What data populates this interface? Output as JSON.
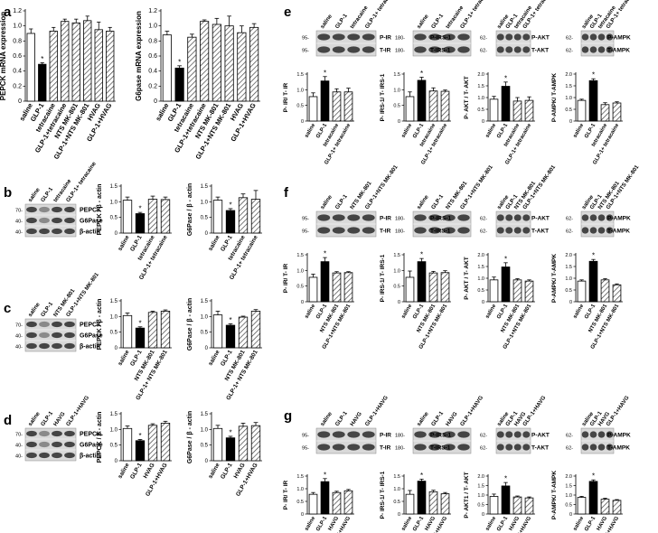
{
  "figure": {
    "panel_letters": {
      "a": "a",
      "b": "b",
      "c": "c",
      "d": "d",
      "e": "e",
      "f": "f",
      "g": "g"
    }
  },
  "colors": {
    "saline": "#ffffff",
    "glp1": "#000000",
    "hatch": "#555555",
    "blot_bg": "#d9d9d9",
    "band": "#2a2a2a"
  },
  "chart_data": [
    {
      "id": "a1",
      "type": "bar",
      "ylabel": "PEPCK mRNA expression",
      "ylim": [
        0,
        1.2
      ],
      "yticks": [
        0,
        0.2,
        0.4,
        0.6,
        0.8,
        1.0,
        1.2
      ],
      "categories": [
        "saline",
        "GLP-1",
        "tetracaine",
        "GLP-1+tetracaine",
        "NTS MK-801",
        "GLP-1+NTS MK-801",
        "HVAG",
        "GLP-1+HVAG"
      ],
      "values": [
        0.9,
        0.49,
        0.93,
        1.06,
        1.04,
        1.07,
        0.95,
        0.93
      ],
      "errors": [
        0.06,
        0.02,
        0.05,
        0.03,
        0.05,
        0.06,
        0.1,
        0.05
      ],
      "significant": [
        1
      ]
    },
    {
      "id": "a2",
      "type": "bar",
      "ylabel": "G6pase mRNA expression",
      "ylim": [
        0,
        1.2
      ],
      "yticks": [
        0,
        0.2,
        0.4,
        0.6,
        0.8,
        1.0,
        1.2
      ],
      "categories": [
        "saline",
        "GLP-1",
        "tetracaine",
        "GLP-1+tetracaine",
        "NTS MK-801",
        "GLP-1+NTS MK-801",
        "HVAG",
        "GLP-1+HVAG"
      ],
      "values": [
        0.88,
        0.44,
        0.85,
        1.06,
        1.02,
        1.0,
        0.91,
        0.98
      ],
      "errors": [
        0.05,
        0.03,
        0.04,
        0.02,
        0.08,
        0.13,
        0.09,
        0.05
      ],
      "significant": [
        1
      ]
    },
    {
      "id": "b1",
      "type": "bar",
      "ylabel": "PEPCK / β - actin",
      "ylim": [
        0,
        1.5
      ],
      "yticks": [
        0,
        0.5,
        1.0,
        1.5
      ],
      "categories": [
        "saline",
        "GLP-1",
        "tetracaine",
        "GLP-1+ tetracaine"
      ],
      "values": [
        1.05,
        0.62,
        1.08,
        1.07
      ],
      "errors": [
        0.1,
        0.04,
        0.1,
        0.08
      ],
      "significant": [
        1
      ]
    },
    {
      "id": "b2",
      "type": "bar",
      "ylabel": "G6Pase / β - actin",
      "ylim": [
        0,
        1.5
      ],
      "yticks": [
        0,
        0.5,
        1.0,
        1.5
      ],
      "categories": [
        "saline",
        "GLP-1",
        "tetracaine",
        "GLP-1+ tetracaine"
      ],
      "values": [
        1.05,
        0.72,
        1.13,
        1.08
      ],
      "errors": [
        0.1,
        0.06,
        0.12,
        0.28
      ],
      "significant": [
        1
      ]
    },
    {
      "id": "c1",
      "type": "bar",
      "ylabel": "PEPCK / β - actin",
      "ylim": [
        0,
        1.5
      ],
      "yticks": [
        0,
        0.5,
        1.0,
        1.5
      ],
      "categories": [
        "saline",
        "GLP-1",
        "NTS MK-801",
        "GLP-1+ NTS MK-801"
      ],
      "values": [
        1.03,
        0.63,
        1.13,
        1.17
      ],
      "errors": [
        0.08,
        0.04,
        0.04,
        0.04
      ],
      "significant": [
        1
      ]
    },
    {
      "id": "c2",
      "type": "bar",
      "ylabel": "G6Pase / β - actin",
      "ylim": [
        0,
        1.5
      ],
      "yticks": [
        0,
        0.5,
        1.0,
        1.5
      ],
      "categories": [
        "saline",
        "GLP-1",
        "NTS MK-801",
        "GLP-1+ NTS MK-801"
      ],
      "values": [
        1.05,
        0.72,
        0.98,
        1.17
      ],
      "errors": [
        0.12,
        0.05,
        0.03,
        0.05
      ],
      "significant": [
        1
      ]
    },
    {
      "id": "d1",
      "type": "bar",
      "ylabel": "PEPCK / β - actin",
      "ylim": [
        0,
        1.5
      ],
      "yticks": [
        0,
        0.5,
        1.0,
        1.5
      ],
      "categories": [
        "saline",
        "GLP-1",
        "HVAG",
        "GLP-1+HVAG"
      ],
      "values": [
        1.03,
        0.64,
        1.13,
        1.2
      ],
      "errors": [
        0.08,
        0.04,
        0.05,
        0.06
      ],
      "significant": [
        1
      ]
    },
    {
      "id": "d2",
      "type": "bar",
      "ylabel": "G6Pase / β - actin",
      "ylim": [
        0,
        1.5
      ],
      "yticks": [
        0,
        0.5,
        1.0,
        1.5
      ],
      "categories": [
        "saline",
        "GLP-1",
        "HVAG",
        "GLP-1+HVAG"
      ],
      "values": [
        1.03,
        0.73,
        1.1,
        1.12
      ],
      "errors": [
        0.1,
        0.05,
        0.1,
        0.1
      ],
      "significant": [
        1
      ]
    },
    {
      "id": "e1",
      "type": "bar",
      "ylabel": "P- IR/ T- IR",
      "ylim": [
        0,
        1.5
      ],
      "yticks": [
        0,
        0.5,
        1.0,
        1.5
      ],
      "categories": [
        "saline",
        "GLP-1",
        "tetracaine",
        "GLP-1+ tetracaine"
      ],
      "values": [
        0.78,
        1.28,
        0.93,
        0.93
      ],
      "errors": [
        0.12,
        0.14,
        0.1,
        0.12
      ],
      "significant": [
        1
      ]
    },
    {
      "id": "e2",
      "type": "bar",
      "ylabel": "P- IRS-1/ T- IRS-1",
      "ylim": [
        0,
        1.5
      ],
      "yticks": [
        0,
        0.5,
        1.0,
        1.5
      ],
      "categories": [
        "saline",
        "GLP-1",
        "tetracaine",
        "GLP-1+ tetracaine"
      ],
      "values": [
        0.78,
        1.3,
        0.96,
        0.95
      ],
      "errors": [
        0.15,
        0.1,
        0.1,
        0.04
      ],
      "significant": [
        1
      ]
    },
    {
      "id": "e3",
      "type": "bar",
      "ylabel": "P- AKT / T- AKT",
      "ylim": [
        0,
        2.0
      ],
      "yticks": [
        0,
        0.5,
        1.0,
        1.5,
        2.0
      ],
      "categories": [
        "saline",
        "GLP-1",
        "tetracaine",
        "GLP-1+ tetracaine"
      ],
      "values": [
        0.93,
        1.48,
        0.85,
        0.88
      ],
      "errors": [
        0.12,
        0.18,
        0.15,
        0.15
      ],
      "significant": [
        1
      ]
    },
    {
      "id": "e4",
      "type": "bar",
      "ylabel": "P-AMPK/ T-AMPK",
      "ylim": [
        0,
        2.0
      ],
      "yticks": [
        0,
        0.5,
        1.0,
        1.5,
        2.0
      ],
      "categories": [
        "saline",
        "GLP-1",
        "tetracaine",
        "GLP-1+ tetracaine"
      ],
      "values": [
        0.88,
        1.72,
        0.7,
        0.77
      ],
      "errors": [
        0.05,
        0.08,
        0.08,
        0.05
      ],
      "significant": [
        1
      ]
    },
    {
      "id": "f1",
      "type": "bar",
      "ylabel": "P- IR/ T- IR",
      "ylim": [
        0,
        1.5
      ],
      "yticks": [
        0,
        0.5,
        1.0,
        1.5
      ],
      "categories": [
        "saline",
        "GLP-1",
        "NTS MK-801",
        "GLP-1+NTS MK-801"
      ],
      "values": [
        0.78,
        1.28,
        0.92,
        0.93
      ],
      "errors": [
        0.1,
        0.13,
        0.04,
        0.03
      ],
      "significant": [
        1
      ]
    },
    {
      "id": "f2",
      "type": "bar",
      "ylabel": "P- IRS-1/ T- IRS-1",
      "ylim": [
        0,
        1.5
      ],
      "yticks": [
        0,
        0.5,
        1.0,
        1.5
      ],
      "categories": [
        "saline",
        "GLP-1",
        "NTS MK-801",
        "GLP-1+NTS MK-801"
      ],
      "values": [
        0.78,
        1.28,
        0.92,
        0.93
      ],
      "errors": [
        0.2,
        0.1,
        0.05,
        0.06
      ],
      "significant": [
        1
      ]
    },
    {
      "id": "f3",
      "type": "bar",
      "ylabel": "P- AKT / T- AKT",
      "ylim": [
        0,
        2.0
      ],
      "yticks": [
        0,
        0.5,
        1.0,
        1.5,
        2.0
      ],
      "categories": [
        "saline",
        "GLP-1",
        "NTS MK-801",
        "GLP-1+NTS MK-801"
      ],
      "values": [
        0.93,
        1.48,
        0.93,
        0.88
      ],
      "errors": [
        0.12,
        0.18,
        0.05,
        0.05
      ],
      "significant": [
        1
      ]
    },
    {
      "id": "f4",
      "type": "bar",
      "ylabel": "P-AMPK/ T-AMPK",
      "ylim": [
        0,
        2.0
      ],
      "yticks": [
        0,
        0.5,
        1.0,
        1.5,
        2.0
      ],
      "categories": [
        "saline",
        "GLP-1",
        "NTS MK-801",
        "GLP-1+NTS MK-801"
      ],
      "values": [
        0.88,
        1.72,
        0.93,
        0.72
      ],
      "errors": [
        0.05,
        0.08,
        0.05,
        0.04
      ],
      "significant": [
        1
      ]
    },
    {
      "id": "g1",
      "type": "bar",
      "ylabel": "P- IR/ T- IR",
      "ylim": [
        0,
        1.5
      ],
      "yticks": [
        0,
        0.5,
        1.0,
        1.5
      ],
      "categories": [
        "saline",
        "GLP-1",
        "HAVG",
        "GLP-1+HAVG"
      ],
      "values": [
        0.78,
        1.28,
        0.85,
        0.92
      ],
      "errors": [
        0.07,
        0.12,
        0.05,
        0.05
      ],
      "significant": [
        1
      ]
    },
    {
      "id": "g2",
      "type": "bar",
      "ylabel": "P- IRS-1/ T- IRS-1",
      "ylim": [
        0,
        1.5
      ],
      "yticks": [
        0,
        0.5,
        1.0,
        1.5
      ],
      "categories": [
        "saline",
        "GLP-1",
        "HAVG",
        "GLP-1+HAVG"
      ],
      "values": [
        0.78,
        1.3,
        0.88,
        0.8
      ],
      "errors": [
        0.15,
        0.08,
        0.06,
        0.05
      ],
      "significant": [
        1
      ]
    },
    {
      "id": "g3",
      "type": "bar",
      "ylabel": "P- AKT1 / T- AKT",
      "ylim": [
        0,
        2.0
      ],
      "yticks": [
        0,
        0.5,
        1.0,
        1.5,
        2.0
      ],
      "categories": [
        "saline",
        "GLP-1",
        "HAVG",
        "GLP-1+HAVG"
      ],
      "values": [
        0.93,
        1.48,
        0.9,
        0.85
      ],
      "errors": [
        0.12,
        0.18,
        0.05,
        0.05
      ],
      "significant": [
        1
      ]
    },
    {
      "id": "g4",
      "type": "bar",
      "ylabel": "P-AMPK/ T-AMPK",
      "ylim": [
        0,
        2.0
      ],
      "yticks": [
        0,
        0.5,
        1.0,
        1.5,
        2.0
      ],
      "categories": [
        "saline",
        "GLP-1",
        "HAVG",
        "GLP-1+HAVG"
      ],
      "values": [
        0.88,
        1.72,
        0.78,
        0.72
      ],
      "errors": [
        0.05,
        0.08,
        0.05,
        0.04
      ],
      "significant": [
        1
      ]
    }
  ],
  "blots": [
    {
      "id": "bb",
      "panel": "b",
      "lanes": [
        "saline",
        "GLP-1",
        "tetracaine",
        "GLP-1+ tetracaine"
      ],
      "rows": [
        {
          "label": "PEPCK",
          "mw": "70-",
          "weak": [
            1
          ]
        },
        {
          "label": "G6Pase",
          "mw": "40-",
          "weak": [
            1
          ]
        },
        {
          "label": "β-actin",
          "mw": "40-",
          "weak": []
        }
      ]
    },
    {
      "id": "bc",
      "panel": "c",
      "lanes": [
        "saline",
        "GLP-1",
        "NTS MK-801",
        "GLP-1+NTS MK-801"
      ],
      "rows": [
        {
          "label": "PEPCK",
          "mw": "70-",
          "weak": [
            1
          ]
        },
        {
          "label": "G6Pase",
          "mw": "40-",
          "weak": [
            1
          ]
        },
        {
          "label": "β-actin",
          "mw": "40-",
          "weak": []
        }
      ]
    },
    {
      "id": "bd",
      "panel": "d",
      "lanes": [
        "saline",
        "GLP-1",
        "HAVG",
        "GLP-1+HAVG"
      ],
      "rows": [
        {
          "label": "PEPCK",
          "mw": "70-",
          "weak": [
            1
          ]
        },
        {
          "label": "G6Pase",
          "mw": "40-",
          "weak": [
            1
          ]
        },
        {
          "label": "β-actin",
          "mw": "40-",
          "weak": []
        }
      ]
    },
    {
      "id": "be1",
      "panel": "e",
      "lanes": [
        "saline",
        "GLP-1",
        "tetracaine",
        "GLP-1+ tetracaine"
      ],
      "rows": [
        {
          "label": "P-IR",
          "mw": "95-"
        },
        {
          "label": "T-IR",
          "mw": "95-"
        }
      ]
    },
    {
      "id": "be2",
      "panel": "e",
      "lanes": [
        "saline",
        "GLP-1",
        "tetracaine",
        "GLP-1+ tetracaine"
      ],
      "rows": [
        {
          "label": "P-IRS-1",
          "mw": "180-"
        },
        {
          "label": "T-IRS-1",
          "mw": "180-"
        }
      ]
    },
    {
      "id": "be3",
      "panel": "e",
      "lanes": [
        "saline",
        "GLP-1",
        "tetracaine",
        "GLP-1+ tetracaine"
      ],
      "rows": [
        {
          "label": "P-AKT",
          "mw": "62-"
        },
        {
          "label": "T-AKT",
          "mw": "62-"
        }
      ]
    },
    {
      "id": "be4",
      "panel": "e",
      "lanes": [
        "saline",
        "GLP-1",
        "tetracaine",
        "GLP-1+ tetracaine"
      ],
      "rows": [
        {
          "label": "P-AMPK",
          "mw": "62-"
        },
        {
          "label": "T-AMPK",
          "mw": "62-"
        }
      ]
    },
    {
      "id": "bf1",
      "panel": "f",
      "lanes": [
        "saline",
        "GLP-1",
        "NTS MK-801",
        "GLP-1+NTS MK-801"
      ],
      "rows": [
        {
          "label": "P-IR",
          "mw": "95-"
        },
        {
          "label": "T-IR",
          "mw": "95-"
        }
      ]
    },
    {
      "id": "bf2",
      "panel": "f",
      "lanes": [
        "saline",
        "GLP-1",
        "NTS MK-801",
        "GLP-1+NTS MK-801"
      ],
      "rows": [
        {
          "label": "P-IRS-1",
          "mw": "180-"
        },
        {
          "label": "T-IRS-1",
          "mw": "180-"
        }
      ]
    },
    {
      "id": "bf3",
      "panel": "f",
      "lanes": [
        "saline",
        "GLP-1",
        "NTS MK-801",
        "GLP-1+NTS MK-801"
      ],
      "rows": [
        {
          "label": "P-AKT",
          "mw": "62-"
        },
        {
          "label": "T-AKT",
          "mw": "62-"
        }
      ]
    },
    {
      "id": "bf4",
      "panel": "f",
      "lanes": [
        "saline",
        "GLP-1",
        "NTS MK-801",
        "GLP-1+NTS MK-801"
      ],
      "rows": [
        {
          "label": "P-AMPK",
          "mw": "62-"
        },
        {
          "label": "T-AMPK",
          "mw": "62-"
        }
      ]
    },
    {
      "id": "bg1",
      "panel": "g",
      "lanes": [
        "saline",
        "GLP-1",
        "HAVG",
        "GLP-1+HAVG"
      ],
      "rows": [
        {
          "label": "P-IR",
          "mw": "95-"
        },
        {
          "label": "T-IR",
          "mw": "95-"
        }
      ]
    },
    {
      "id": "bg2",
      "panel": "g",
      "lanes": [
        "saline",
        "GLP-1",
        "HAVG",
        "GLP-1+HAVG"
      ],
      "rows": [
        {
          "label": "P-IRS-1",
          "mw": "180-"
        },
        {
          "label": "T-IRS-1",
          "mw": "180-"
        }
      ]
    },
    {
      "id": "bg3",
      "panel": "g",
      "lanes": [
        "saline",
        "GLP-1",
        "HAVG",
        "GLP-1+HAVG"
      ],
      "rows": [
        {
          "label": "P-AKT",
          "mw": "62-"
        },
        {
          "label": "T-AKT",
          "mw": "62-"
        }
      ]
    },
    {
      "id": "bg4",
      "panel": "g",
      "lanes": [
        "saline",
        "GLP-1",
        "HAVG",
        "GLP-1+HAVG"
      ],
      "rows": [
        {
          "label": "P-AMPK",
          "mw": "62-"
        },
        {
          "label": "T-AMPK",
          "mw": "62-"
        }
      ]
    }
  ]
}
